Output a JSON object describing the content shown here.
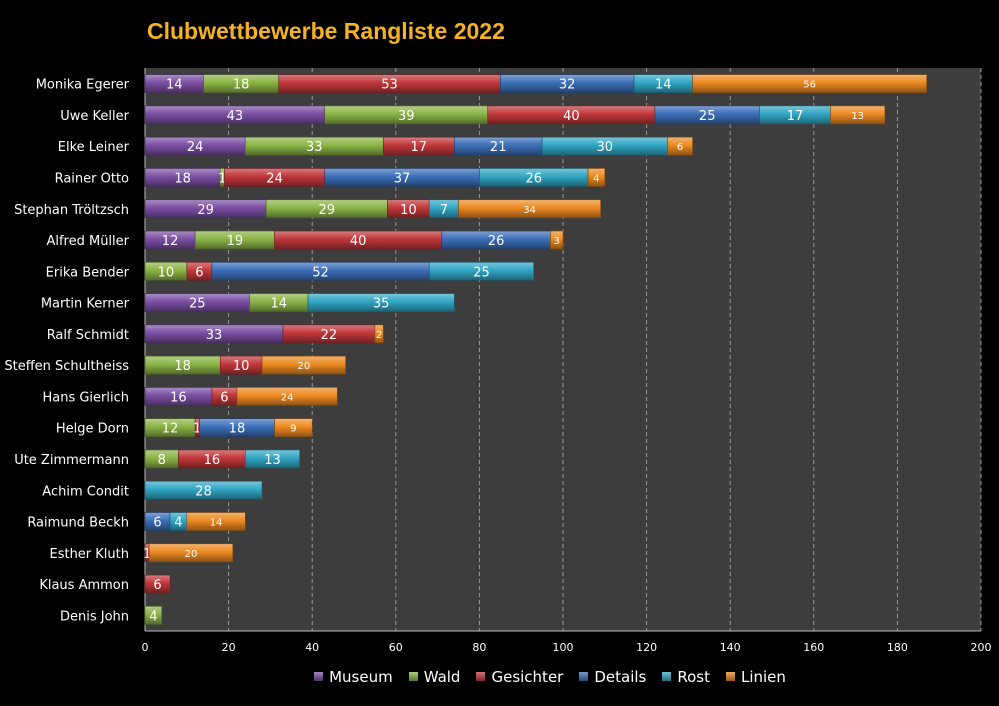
{
  "chart_data": {
    "type": "bar",
    "orientation": "horizontal",
    "stacked": true,
    "title": "Clubwettbewerbe Rangliste 2022",
    "xlabel": "",
    "ylabel": "",
    "xlim": [
      0,
      200
    ],
    "x_ticks": [
      0,
      20,
      40,
      60,
      80,
      100,
      120,
      140,
      160,
      180,
      200
    ],
    "grid": "vertical dashed",
    "legend_position": "bottom",
    "categories": [
      "Monika Egerer",
      "Uwe Keller",
      "Elke Leiner",
      "Rainer Otto",
      "Stephan Tröltzsch",
      "Alfred Müller",
      "Erika Bender",
      "Martin  Kerner",
      "Ralf Schmidt",
      "Steffen Schultheiss",
      "Hans Gierlich",
      "Helge Dorn",
      "Ute Zimmermann",
      "Achim Condit",
      "Raimund Beckh",
      "Esther Kluth",
      "Klaus Ammon",
      "Denis John"
    ],
    "series": [
      {
        "name": "Museum",
        "color": "#7b4fa3",
        "values": [
          14,
          43,
          24,
          18,
          29,
          12,
          null,
          25,
          33,
          null,
          16,
          null,
          null,
          null,
          null,
          null,
          null,
          null
        ]
      },
      {
        "name": "Wald",
        "color": "#8bb446",
        "values": [
          18,
          39,
          33,
          1,
          29,
          19,
          10,
          14,
          null,
          18,
          null,
          12,
          8,
          null,
          null,
          null,
          null,
          4
        ]
      },
      {
        "name": "Gesichter",
        "color": "#c0373a",
        "values": [
          53,
          40,
          17,
          24,
          10,
          40,
          6,
          null,
          22,
          10,
          6,
          1,
          16,
          null,
          null,
          1,
          6,
          null
        ]
      },
      {
        "name": "Details",
        "color": "#3c6fb8",
        "values": [
          32,
          25,
          21,
          37,
          null,
          26,
          52,
          null,
          null,
          null,
          null,
          18,
          null,
          null,
          6,
          null,
          null,
          null
        ]
      },
      {
        "name": "Rost",
        "color": "#31a6c4",
        "values": [
          14,
          17,
          30,
          26,
          7,
          null,
          25,
          35,
          null,
          null,
          null,
          null,
          13,
          28,
          4,
          null,
          null,
          null
        ]
      },
      {
        "name": "Linien",
        "color": "#ec8a21",
        "values": [
          56,
          13,
          6,
          4,
          34,
          3,
          null,
          null,
          2,
          20,
          24,
          9,
          null,
          null,
          14,
          20,
          null,
          null
        ]
      }
    ]
  }
}
